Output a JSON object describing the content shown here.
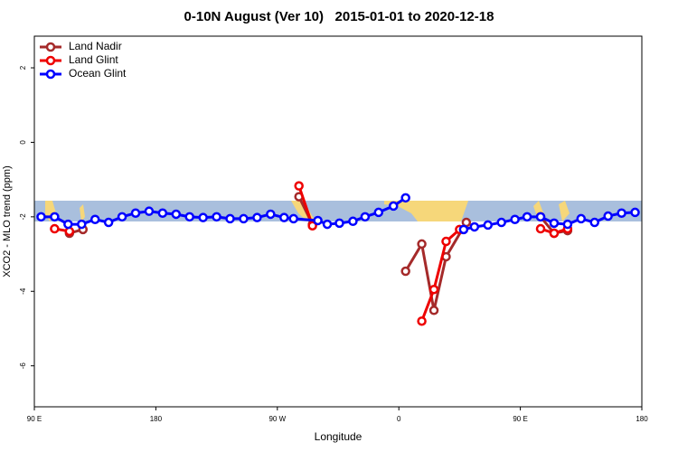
{
  "chart_data": {
    "type": "line",
    "title": "0-10N August (Ver 10)   2015-01-01 to 2020-12-18",
    "x_label": "Longitude",
    "y_label": "XCO2 - MLO trend (ppm)",
    "xlim": [
      90,
      540
    ],
    "ylim": [
      -7.1,
      2.85
    ],
    "xticks": [
      {
        "value": 90,
        "label": "90 E"
      },
      180,
      {
        "value": 270,
        "label": "90 W"
      },
      {
        "value": 360,
        "label": "0"
      },
      {
        "value": 450,
        "label": "90 E"
      },
      {
        "value": 540,
        "label": "180"
      }
    ],
    "yticks": [
      -6,
      -4,
      -2,
      0,
      2
    ],
    "legend": "top-left",
    "series": [
      {
        "name": "Land Nadir",
        "color": "#a52a2a",
        "x": [
          116,
          126,
          null,
          286,
          296,
          null,
          365,
          377,
          386,
          395,
          410,
          null,
          465,
          475,
          485
        ],
        "values": [
          -2.44,
          -2.34,
          null,
          -1.46,
          -2.2,
          null,
          -3.46,
          -2.73,
          -4.51,
          -3.07,
          -2.15,
          null,
          -2.0,
          -2.44,
          -2.37
        ]
      },
      {
        "name": "Land Glint",
        "color": "#ee0000",
        "x": [
          105,
          116,
          null,
          286,
          296,
          null,
          377,
          386,
          395,
          405,
          null,
          465,
          475,
          485
        ],
        "values": [
          -2.32,
          -2.39,
          null,
          -1.17,
          -2.24,
          null,
          -4.8,
          -3.95,
          -2.66,
          -2.34,
          null,
          -2.32,
          -2.44,
          -2.32
        ]
      },
      {
        "name": "Ocean Glint",
        "color": "#0000ff",
        "x": [
          95,
          105,
          115,
          125,
          135,
          145,
          155,
          165,
          175,
          185,
          195,
          205,
          215,
          225,
          235,
          245,
          255,
          265,
          275,
          282,
          300,
          307,
          316,
          326,
          335,
          345,
          356,
          365,
          null,
          408,
          416,
          426,
          436,
          446,
          455,
          465,
          475,
          485,
          495,
          505,
          515,
          525,
          535
        ],
        "values": [
          -2.0,
          -2.0,
          -2.2,
          -2.2,
          -2.07,
          -2.15,
          -2.0,
          -1.9,
          -1.85,
          -1.9,
          -1.93,
          -2.0,
          -2.02,
          -2.0,
          -2.05,
          -2.05,
          -2.02,
          -1.93,
          -2.02,
          -2.05,
          -2.1,
          -2.2,
          -2.17,
          -2.12,
          -2.0,
          -1.88,
          -1.71,
          -1.49,
          null,
          -2.34,
          -2.27,
          -2.22,
          -2.15,
          -2.07,
          -2.0,
          -2.0,
          -2.17,
          -2.2,
          -2.05,
          -2.15,
          -1.98,
          -1.9,
          -1.88
        ]
      }
    ]
  }
}
